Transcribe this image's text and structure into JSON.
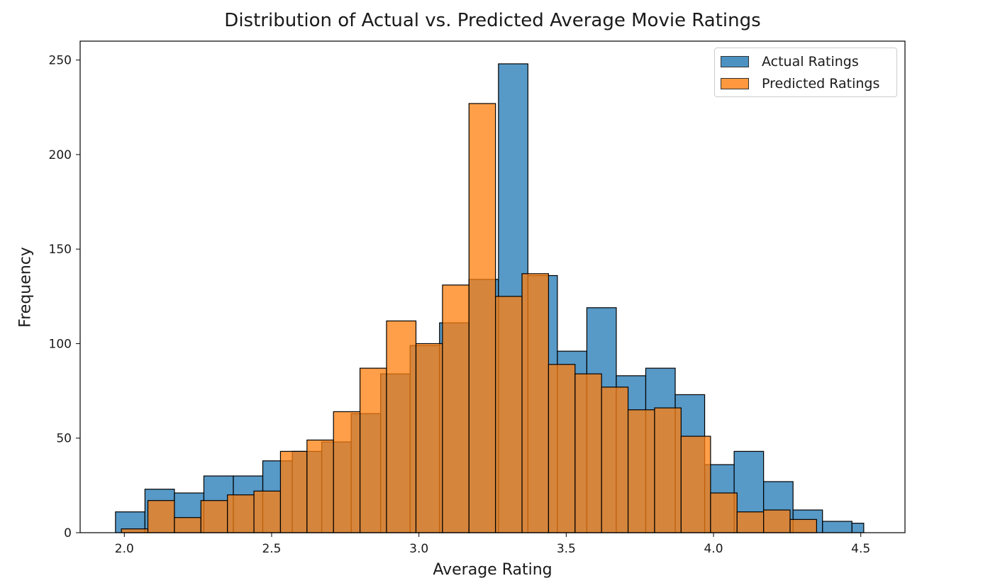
{
  "chart_data": {
    "type": "histogram",
    "title": "Distribution of Actual vs. Predicted Average Movie Ratings",
    "xlabel": "Average Rating",
    "ylabel": "Frequency",
    "xlim": [
      1.85,
      4.65
    ],
    "ylim": [
      0,
      260
    ],
    "xticks": [
      "2.0",
      "2.5",
      "3.0",
      "3.5",
      "4.0",
      "4.5"
    ],
    "xtick_values": [
      2.0,
      2.5,
      3.0,
      3.5,
      4.0,
      4.5
    ],
    "yticks": [
      "0",
      "50",
      "100",
      "150",
      "200",
      "250"
    ],
    "ytick_values": [
      0,
      50,
      100,
      150,
      200,
      250
    ],
    "legend_position": "upper right",
    "series": [
      {
        "name": "Actual Ratings",
        "color": "#1f77b4",
        "bin_edges": [
          1.97,
          2.07,
          2.17,
          2.27,
          2.37,
          2.47,
          2.57,
          2.67,
          2.77,
          2.87,
          2.97,
          3.07,
          3.17,
          3.27,
          3.37,
          3.47,
          3.57,
          3.67,
          3.77,
          3.87,
          3.97,
          4.07,
          4.17,
          4.27,
          4.37,
          4.47,
          4.51
        ],
        "counts": [
          11,
          23,
          21,
          30,
          30,
          38,
          43,
          48,
          63,
          84,
          99,
          111,
          134,
          248,
          136,
          96,
          119,
          83,
          87,
          73,
          36,
          43,
          27,
          12,
          6,
          5
        ]
      },
      {
        "name": "Predicted Ratings",
        "color": "#ff7f0e",
        "bin_edges": [
          1.99,
          2.08,
          2.17,
          2.26,
          2.35,
          2.44,
          2.53,
          2.62,
          2.71,
          2.8,
          2.89,
          2.99,
          3.08,
          3.17,
          3.26,
          3.35,
          3.44,
          3.53,
          3.62,
          3.71,
          3.8,
          3.89,
          3.99,
          4.08,
          4.17,
          4.26,
          4.35
        ],
        "counts": [
          2,
          17,
          8,
          17,
          20,
          22,
          43,
          49,
          64,
          87,
          112,
          100,
          131,
          227,
          125,
          137,
          89,
          84,
          77,
          65,
          66,
          51,
          21,
          11,
          12,
          7
        ]
      }
    ]
  }
}
